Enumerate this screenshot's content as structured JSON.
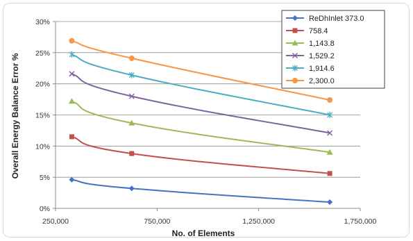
{
  "chart_data": {
    "type": "line",
    "title": "",
    "xlabel": "No. of Elements",
    "ylabel": "Overall Energy Balance Error  %",
    "xlim": [
      250000,
      1750000
    ],
    "ylim": [
      0,
      0.3
    ],
    "x_ticks": [
      250000,
      750000,
      1250000,
      1750000
    ],
    "x_tick_labels": [
      "250,000",
      "750,000",
      "1,250,000",
      "1,750,000"
    ],
    "y_ticks": [
      0,
      0.05,
      0.1,
      0.15,
      0.2,
      0.25,
      0.3
    ],
    "y_tick_labels": [
      "0%",
      "5%",
      "10%",
      "15%",
      "20%",
      "25%",
      "30%"
    ],
    "grid": "horizontal",
    "legend_position": "top-right",
    "x": [
      330000,
      625000,
      1600000
    ],
    "series": [
      {
        "name": "ReDhInlet 373.0",
        "values": [
          0.046,
          0.032,
          0.01
        ],
        "color": "#4472C4",
        "marker": "diamond"
      },
      {
        "name": "758.4",
        "values": [
          0.115,
          0.088,
          0.056
        ],
        "color": "#C0504D",
        "marker": "square"
      },
      {
        "name": "1,143.8",
        "values": [
          0.172,
          0.137,
          0.09
        ],
        "color": "#9BBB59",
        "marker": "triangle"
      },
      {
        "name": "1,529.2",
        "values": [
          0.216,
          0.18,
          0.121
        ],
        "color": "#8064A2",
        "marker": "x"
      },
      {
        "name": "1,914.6",
        "values": [
          0.247,
          0.214,
          0.15
        ],
        "color": "#4BACC6",
        "marker": "star"
      },
      {
        "name": "2,300.0",
        "values": [
          0.269,
          0.241,
          0.174
        ],
        "color": "#F79646",
        "marker": "circle"
      }
    ]
  }
}
